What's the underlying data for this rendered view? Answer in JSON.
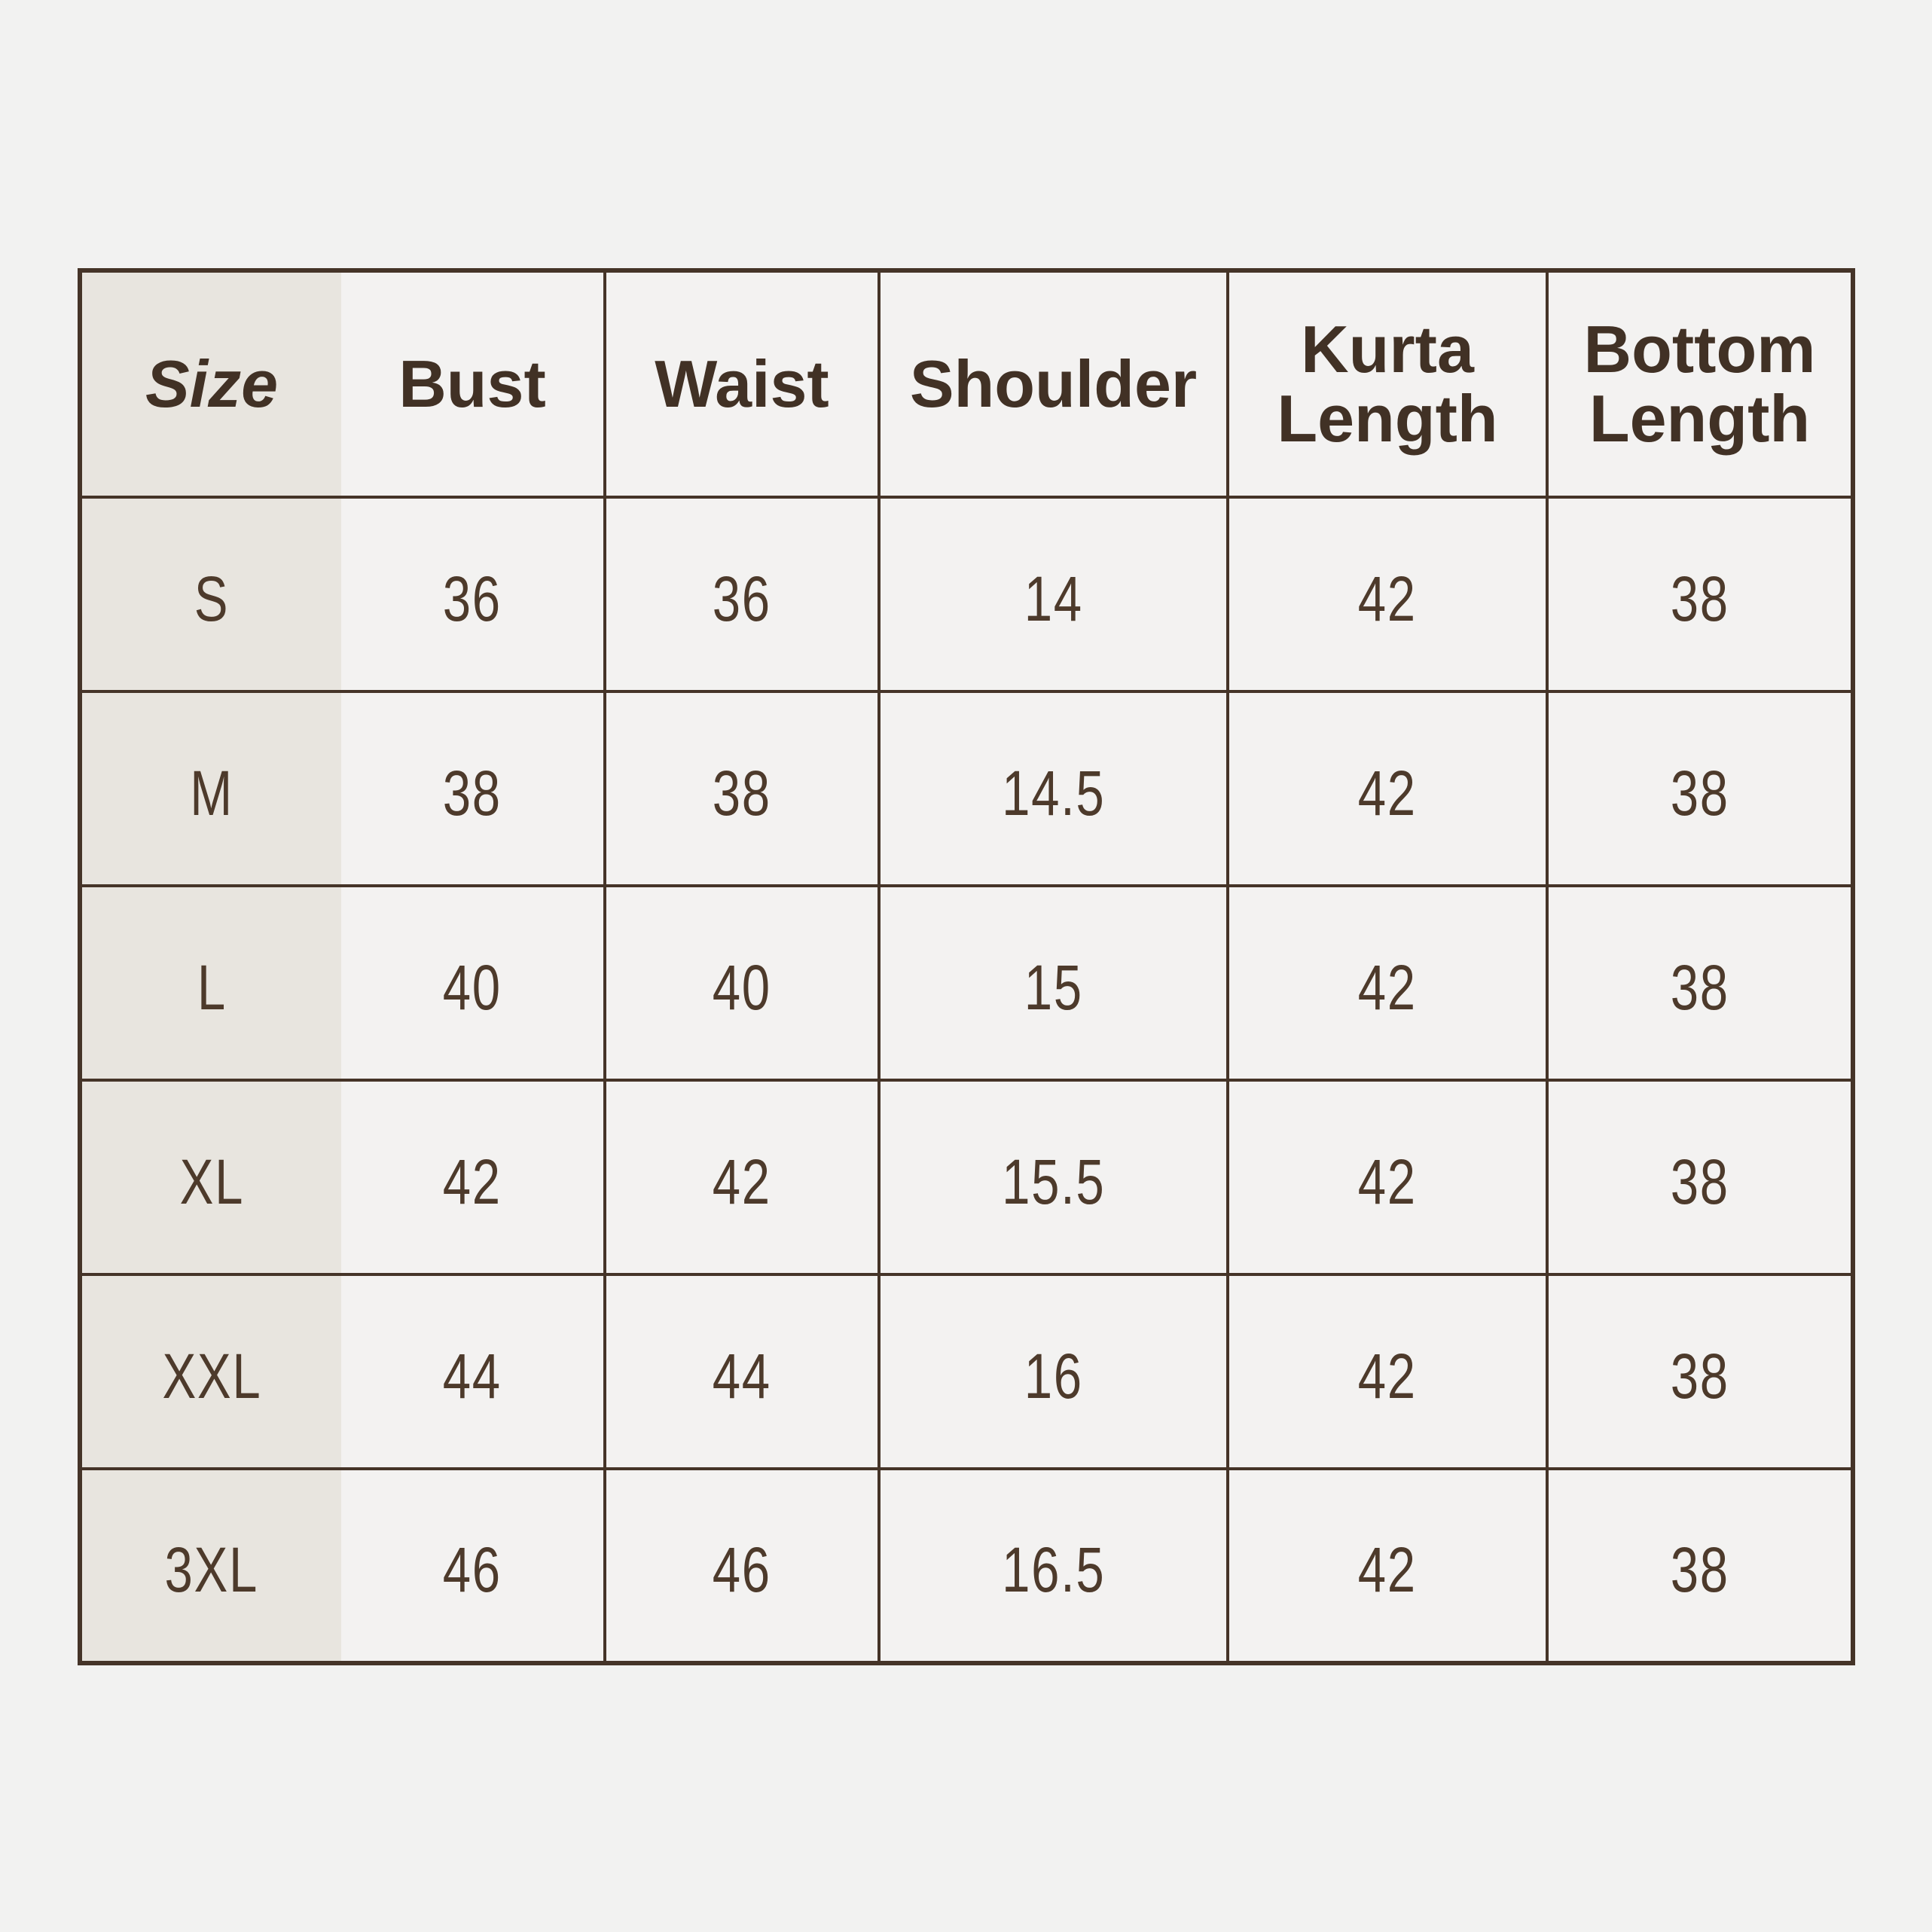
{
  "style": {
    "page_background": "#f2f2f1",
    "cell_background": "#f3f2f1",
    "size_column_background": "#e8e5df",
    "border_color": "#453428",
    "header_text_color": "#413125",
    "data_text_color": "#4d3a2b"
  },
  "chart_data": {
    "type": "table",
    "columns": [
      "Size",
      "Bust",
      "Waist",
      "Shoulder",
      "Kurta Length",
      "Bottom Length"
    ],
    "rows": [
      [
        "S",
        "36",
        "36",
        "14",
        "42",
        "38"
      ],
      [
        "M",
        "38",
        "38",
        "14.5",
        "42",
        "38"
      ],
      [
        "L",
        "40",
        "40",
        "15",
        "42",
        "38"
      ],
      [
        "XL",
        "42",
        "42",
        "15.5",
        "42",
        "38"
      ],
      [
        "XXL",
        "44",
        "44",
        "16",
        "42",
        "38"
      ],
      [
        "3XL",
        "46",
        "46",
        "16.5",
        "42",
        "38"
      ]
    ],
    "layout_hints": {
      "header_row": true,
      "size_column_shaded": true,
      "grid_lines": "all interior and outer borders, except no divider between Size and Bust columns"
    }
  }
}
